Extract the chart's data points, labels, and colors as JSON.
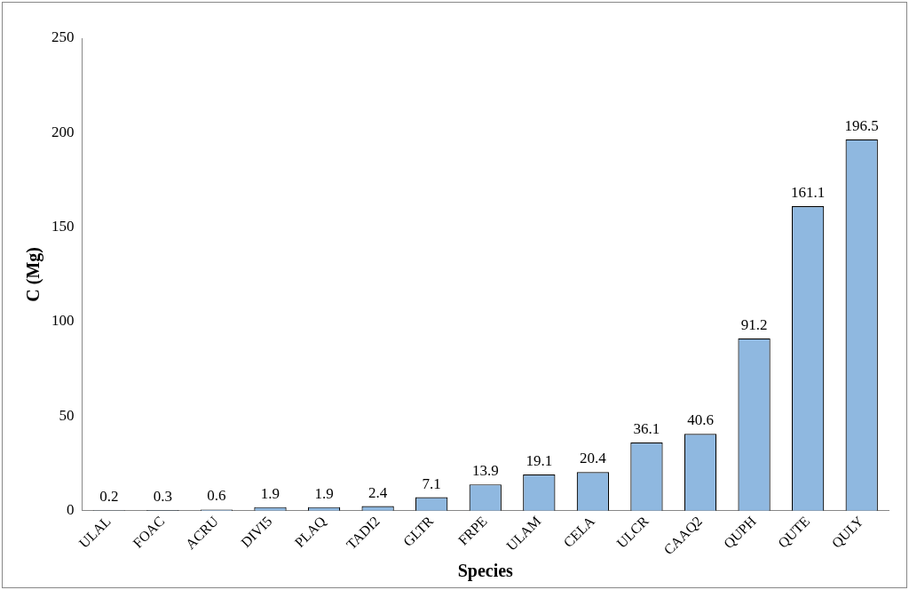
{
  "chart_data": {
    "type": "bar",
    "xlabel": "Species",
    "ylabel": "C (Mg)",
    "categories": [
      "ULAL",
      "FOAC",
      "ACRU",
      "DIVI5",
      "PLAQ",
      "TADI2",
      "GLTR",
      "FRPE",
      "ULAM",
      "CELA",
      "ULCR",
      "CAAQ2",
      "QUPH",
      "QUTE",
      "QULY"
    ],
    "values": [
      0.2,
      0.3,
      0.6,
      1.9,
      1.9,
      2.4,
      7.1,
      13.9,
      19.1,
      20.4,
      36.1,
      40.6,
      91.2,
      161.1,
      196.5
    ],
    "color": "#8fb8e0",
    "ylim": [
      0,
      250
    ],
    "yticks": [
      0,
      50,
      100,
      150,
      200,
      250
    ],
    "grid": false,
    "legend": false,
    "data_labels": true
  }
}
